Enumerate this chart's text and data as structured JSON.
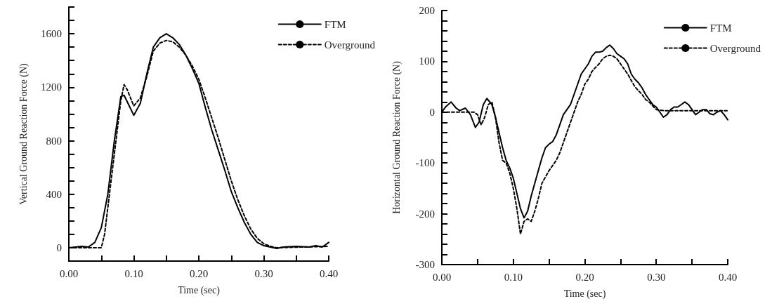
{
  "chart_data": [
    {
      "type": "line",
      "xlabel": "Time (sec)",
      "ylabel": "Vertical Ground Reaction Force (N)",
      "xlim": [
        0,
        0.4
      ],
      "ylim": [
        -100,
        1800
      ],
      "xticks": [
        {
          "value": 0,
          "label": "0.00"
        },
        {
          "value": 0.05,
          "label": null
        },
        {
          "value": 0.1,
          "label": "0.10"
        },
        {
          "value": 0.15,
          "label": null
        },
        {
          "value": 0.2,
          "label": "0.20"
        },
        {
          "value": 0.25,
          "label": null
        },
        {
          "value": 0.3,
          "label": "0.30"
        },
        {
          "value": 0.35,
          "label": null
        },
        {
          "value": 0.4,
          "label": "0.40"
        }
      ],
      "yticks": [
        {
          "value": -100,
          "label": null
        },
        0,
        {
          "value": 100,
          "label": null
        },
        {
          "value": 200,
          "label": null
        },
        {
          "value": 300,
          "label": null
        },
        400,
        {
          "value": 500,
          "label": null
        },
        {
          "value": 600,
          "label": null
        },
        {
          "value": 700,
          "label": null
        },
        800,
        {
          "value": 900,
          "label": null
        },
        {
          "value": 1000,
          "label": null
        },
        {
          "value": 1100,
          "label": null
        },
        1200,
        {
          "value": 1300,
          "label": null
        },
        {
          "value": 1400,
          "label": null
        },
        {
          "value": 1500,
          "label": null
        },
        1600,
        {
          "value": 1700,
          "label": null
        },
        {
          "value": 1800,
          "label": null
        }
      ],
      "grid": false,
      "legend": "top right",
      "marker": "none",
      "series": [
        {
          "name": "FTM",
          "color": "#000000",
          "line_style": "solid",
          "x": [
            0,
            0.02,
            0.03,
            0.04,
            0.05,
            0.06,
            0.07,
            0.08,
            0.085,
            0.095,
            0.1,
            0.11,
            0.12,
            0.13,
            0.14,
            0.15,
            0.16,
            0.17,
            0.18,
            0.19,
            0.2,
            0.21,
            0.22,
            0.23,
            0.24,
            0.25,
            0.26,
            0.27,
            0.28,
            0.29,
            0.3,
            0.31,
            0.32,
            0.33,
            0.35,
            0.37,
            0.38,
            0.39,
            0.4
          ],
          "values": [
            0,
            10,
            5,
            40,
            150,
            400,
            800,
            1130,
            1140,
            1040,
            990,
            1080,
            1300,
            1500,
            1570,
            1600,
            1570,
            1520,
            1440,
            1340,
            1230,
            1050,
            880,
            730,
            580,
            420,
            300,
            190,
            100,
            40,
            15,
            5,
            -5,
            5,
            10,
            5,
            15,
            5,
            40
          ]
        },
        {
          "name": "Overground",
          "color": "#000000",
          "line_style": "dashed",
          "x": [
            0,
            0.05,
            0.055,
            0.06,
            0.07,
            0.08,
            0.085,
            0.09,
            0.1,
            0.11,
            0.12,
            0.13,
            0.14,
            0.15,
            0.16,
            0.17,
            0.18,
            0.19,
            0.2,
            0.21,
            0.22,
            0.23,
            0.24,
            0.25,
            0.26,
            0.27,
            0.28,
            0.29,
            0.3,
            0.31,
            0.32,
            0.4
          ],
          "values": [
            0,
            0,
            100,
            300,
            700,
            1100,
            1220,
            1180,
            1060,
            1120,
            1280,
            1470,
            1530,
            1550,
            1540,
            1500,
            1440,
            1360,
            1260,
            1120,
            970,
            820,
            660,
            500,
            360,
            240,
            140,
            70,
            30,
            10,
            0,
            10
          ]
        }
      ]
    },
    {
      "type": "line",
      "xlabel": "Time (sec)",
      "ylabel": "Horizontal Ground Reaction Force (N)",
      "xlim": [
        0,
        0.4
      ],
      "ylim": [
        -300,
        200
      ],
      "xticks": [
        {
          "value": 0,
          "label": "0.00"
        },
        {
          "value": 0.05,
          "label": null
        },
        {
          "value": 0.1,
          "label": "0.10"
        },
        {
          "value": 0.15,
          "label": null
        },
        {
          "value": 0.2,
          "label": "0.20"
        },
        {
          "value": 0.25,
          "label": null
        },
        {
          "value": 0.3,
          "label": "0.30"
        },
        {
          "value": 0.35,
          "label": null
        },
        {
          "value": 0.4,
          "label": "0.40"
        }
      ],
      "yticks": [
        -300,
        {
          "value": -280,
          "label": null
        },
        {
          "value": -260,
          "label": null
        },
        {
          "value": -240,
          "label": null
        },
        {
          "value": -220,
          "label": null
        },
        -200,
        {
          "value": -180,
          "label": null
        },
        {
          "value": -160,
          "label": null
        },
        {
          "value": -140,
          "label": null
        },
        {
          "value": -120,
          "label": null
        },
        -100,
        {
          "value": -80,
          "label": null
        },
        {
          "value": -60,
          "label": null
        },
        {
          "value": -40,
          "label": null
        },
        {
          "value": -20,
          "label": null
        },
        0,
        {
          "value": 20,
          "label": null
        },
        {
          "value": 40,
          "label": null
        },
        {
          "value": 60,
          "label": null
        },
        {
          "value": 80,
          "label": null
        },
        100,
        {
          "value": 120,
          "label": null
        },
        {
          "value": 140,
          "label": null
        },
        {
          "value": 160,
          "label": null
        },
        {
          "value": 180,
          "label": null
        },
        200
      ],
      "grid": false,
      "legend": "top right",
      "marker": "none",
      "series": [
        {
          "name": "FTM",
          "color": "#000000",
          "line_style": "solid",
          "x": [
            0,
            0.005,
            0.013,
            0.02,
            0.025,
            0.033,
            0.04,
            0.047,
            0.052,
            0.058,
            0.063,
            0.07,
            0.075,
            0.08,
            0.085,
            0.09,
            0.095,
            0.1,
            0.105,
            0.11,
            0.115,
            0.12,
            0.125,
            0.13,
            0.135,
            0.14,
            0.145,
            0.15,
            0.155,
            0.16,
            0.165,
            0.17,
            0.175,
            0.18,
            0.185,
            0.19,
            0.195,
            0.2,
            0.205,
            0.21,
            0.215,
            0.22,
            0.225,
            0.23,
            0.235,
            0.24,
            0.245,
            0.25,
            0.255,
            0.26,
            0.265,
            0.27,
            0.275,
            0.28,
            0.285,
            0.29,
            0.295,
            0.3,
            0.305,
            0.31,
            0.315,
            0.32,
            0.325,
            0.33,
            0.335,
            0.34,
            0.345,
            0.35,
            0.355,
            0.36,
            0.365,
            0.37,
            0.375,
            0.38,
            0.385,
            0.39,
            0.395,
            0.4
          ],
          "values": [
            0,
            10,
            20,
            8,
            3,
            8,
            -5,
            -30,
            -20,
            15,
            27,
            15,
            -10,
            -40,
            -70,
            -95,
            -110,
            -130,
            -160,
            -190,
            -208,
            -195,
            -165,
            -140,
            -115,
            -90,
            -70,
            -63,
            -58,
            -45,
            -25,
            -5,
            5,
            15,
            35,
            55,
            75,
            85,
            95,
            110,
            118,
            118,
            120,
            127,
            132,
            125,
            115,
            110,
            105,
            95,
            75,
            65,
            58,
            48,
            35,
            25,
            15,
            10,
            0,
            -10,
            -5,
            5,
            10,
            10,
            15,
            20,
            15,
            5,
            -5,
            0,
            5,
            5,
            -3,
            -5,
            0,
            3,
            -5,
            -15
          ]
        },
        {
          "name": "Overground",
          "color": "#000000",
          "line_style": "dashed",
          "x": [
            0,
            0.045,
            0.05,
            0.055,
            0.06,
            0.065,
            0.07,
            0.075,
            0.08,
            0.085,
            0.09,
            0.095,
            0.1,
            0.105,
            0.11,
            0.115,
            0.12,
            0.125,
            0.13,
            0.135,
            0.14,
            0.15,
            0.16,
            0.165,
            0.17,
            0.175,
            0.18,
            0.185,
            0.19,
            0.195,
            0.2,
            0.205,
            0.21,
            0.215,
            0.22,
            0.225,
            0.23,
            0.235,
            0.24,
            0.245,
            0.25,
            0.26,
            0.27,
            0.28,
            0.285,
            0.29,
            0.3,
            0.31,
            0.4
          ],
          "values": [
            0,
            0,
            -5,
            -25,
            -10,
            15,
            20,
            -10,
            -60,
            -95,
            -100,
            -120,
            -150,
            -190,
            -240,
            -215,
            -210,
            -215,
            -195,
            -170,
            -140,
            -115,
            -95,
            -80,
            -60,
            -40,
            -20,
            0,
            20,
            35,
            55,
            65,
            80,
            88,
            95,
            105,
            110,
            112,
            110,
            105,
            95,
            75,
            50,
            35,
            25,
            20,
            5,
            3,
            3
          ]
        }
      ]
    }
  ]
}
